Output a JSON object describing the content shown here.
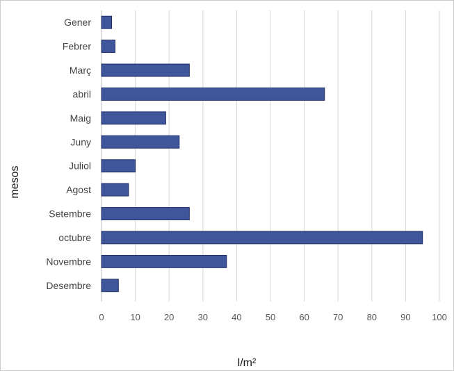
{
  "chart_data": {
    "type": "bar",
    "orientation": "horizontal",
    "categories": [
      "Gener",
      "Febrer",
      "Març",
      "abril",
      "Maig",
      "Juny",
      "Juliol",
      "Agost",
      "Setembre",
      "octubre",
      "Novembre",
      "Desembre"
    ],
    "values": [
      3,
      4,
      26,
      66,
      19,
      23,
      10,
      8,
      26,
      95,
      37,
      5
    ],
    "xlabel": "l/m²",
    "ylabel": "mesos",
    "xlim": [
      0,
      100
    ],
    "xticks": [
      0,
      10,
      20,
      30,
      40,
      50,
      60,
      70,
      80,
      90,
      100
    ],
    "grid": "vertical",
    "legend": "none",
    "bar_color": "#3f569b"
  }
}
